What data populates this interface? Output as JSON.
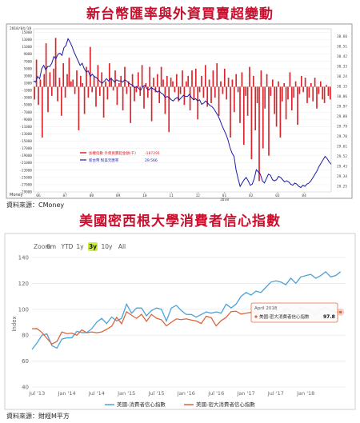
{
  "title_top": "新台幣匯率與外資買賣超變動",
  "title_bottom": "美國密西根大學消費者信心指數",
  "source_top": "資料來源：CMoney",
  "source_bottom": "資料來源：財經M平方",
  "colors": {
    "title": "#c8102e",
    "bars": "#d9262c",
    "twd_line": "#1a1aa8",
    "us_line": "#4aa3d8",
    "eu_line": "#e0643a",
    "zoom_active": "#c9ef3a"
  },
  "chart_data": [
    {
      "type": "bar",
      "chart": "foreign-net-buy-vs-twd",
      "date_label": "2018/04/18",
      "x_tick_labels": [
        "06",
        "07",
        "08",
        "09",
        "10",
        "11",
        "12",
        "01",
        "02",
        "03",
        "04"
      ],
      "x_sub_label": "2018",
      "y_left_ticks": [
        15000,
        13000,
        11000,
        9000,
        7000,
        5000,
        3000,
        1000,
        -1000,
        -3000,
        -5000,
        -7000,
        -9000,
        -11000,
        -13000,
        -15000,
        -17000,
        -19000,
        -21000,
        -23000,
        -25000,
        -27000,
        -29000
      ],
      "y_left_range": [
        -29000,
        16000
      ],
      "y_right_ticks": [
        "30.60",
        "30.51",
        "30.42",
        "30.33",
        "30.24",
        "30.15",
        "30.06",
        "29.97",
        "29.88",
        "29.79",
        "29.70",
        "29.61",
        "29.52",
        "29.43",
        "29.34",
        "29.25"
      ],
      "y_right_range": [
        29.2,
        30.67
      ],
      "legend": [
        {
          "label": "加權指數 外資買賣超金額(千)",
          "value": "-187291"
        },
        {
          "label": "新台幣 對美元匯率",
          "value": "29.566"
        }
      ],
      "bottom_label": "Money",
      "series": [
        {
          "name": "加權指數 外資買賣超金額(千)",
          "values": [
            -3500,
            7500,
            -5000,
            2000,
            -14000,
            3500,
            12000,
            -7000,
            4000,
            -2500,
            5000,
            13500,
            -4000,
            2500,
            -8000,
            6500,
            -3000,
            3500,
            8000,
            1500,
            2000,
            -2000,
            4500,
            -12000,
            3000,
            1000,
            -7500,
            5500,
            -3000,
            11000,
            -1500,
            3000,
            -5500,
            6000,
            -2500,
            4000,
            -8500,
            1500,
            -3500,
            6500,
            2500,
            -1000,
            4500,
            -5000,
            1000,
            3000,
            -6500,
            5500,
            -2000,
            1500,
            -10000,
            3500,
            -4000,
            -1500,
            4000,
            -2500,
            6000,
            -6000,
            1000,
            -3000,
            5500,
            -9500,
            2500,
            -1500,
            3500,
            -4500,
            5500,
            2000,
            -7500,
            3000,
            -12500,
            2500,
            1500,
            -1500,
            3500,
            -4000,
            -2000,
            4500,
            -5000,
            1500,
            3000,
            -6500,
            4500,
            -3500,
            5000,
            -9000,
            -1500,
            3000,
            -3000,
            6000,
            -5500,
            2000,
            -4500,
            4500,
            -3000,
            6500,
            -8000,
            1500,
            -2000,
            5000,
            -3500,
            2500,
            -14000,
            2000,
            -7000,
            3500,
            -1500,
            -10000,
            4000,
            -16000,
            -2500,
            -8000,
            5500,
            -20000,
            3000,
            -12000,
            -4500,
            -26000,
            4500,
            -17000,
            -6000,
            3500,
            -19000,
            -2500,
            2000,
            -7500,
            -11000,
            1500,
            -14000,
            -4000,
            1000,
            -9000,
            -3500,
            4000,
            -6500,
            -3000,
            1500,
            -10500,
            -2000,
            3000,
            -1500,
            2500,
            -4500,
            -3000,
            1000,
            -4000,
            2500,
            -6000,
            -2000,
            1500,
            -3500,
            -4500,
            500,
            -2500,
            -3500
          ]
        },
        {
          "name": "新台幣 對美元匯率",
          "values": [
            30.2,
            30.19,
            30.24,
            30.22,
            30.31,
            30.34,
            30.3,
            30.33,
            30.33,
            30.36,
            30.42,
            30.4,
            30.44,
            30.45,
            30.43,
            30.5,
            30.52,
            30.58,
            30.55,
            30.51,
            30.46,
            30.42,
            30.38,
            30.34,
            30.36,
            30.31,
            30.28,
            30.29,
            30.24,
            30.26,
            30.24,
            30.23,
            30.21,
            30.19,
            30.18,
            30.2,
            30.22,
            30.2,
            30.22,
            30.21,
            30.19,
            30.21,
            30.2,
            30.2,
            30.19,
            30.21,
            30.2,
            30.18,
            30.17,
            30.16,
            30.14,
            30.15,
            30.13,
            30.12,
            30.15,
            30.16,
            30.13,
            30.12,
            30.14,
            30.13,
            30.12,
            30.1,
            30.11,
            30.09,
            30.08,
            30.05,
            30.06,
            30.05,
            30.03,
            30.02,
            30.04,
            30.05,
            30.03,
            30.05,
            30.07,
            30.06,
            30.06,
            30.08,
            30.05,
            30.03,
            30.04,
            30.02,
            30.03,
            29.99,
            30.0,
            30.02,
            30.0,
            29.98,
            29.97,
            29.95,
            29.92,
            29.89,
            29.85,
            29.8,
            29.76,
            29.72,
            29.67,
            29.6,
            29.55,
            29.52,
            29.4,
            29.32,
            29.25,
            29.28,
            29.31,
            29.33,
            29.3,
            29.26,
            29.27,
            29.32,
            29.4,
            29.38,
            29.36,
            29.3,
            29.28,
            29.32,
            29.36,
            29.35,
            29.31,
            29.3,
            29.31,
            29.34,
            29.33,
            29.31,
            29.29,
            29.3,
            29.29,
            29.27,
            29.26,
            29.28,
            29.27,
            29.25,
            29.24,
            29.26,
            29.25,
            29.27,
            29.28,
            29.3,
            29.33,
            29.36,
            29.39,
            29.43,
            29.46,
            29.49,
            29.52,
            29.5,
            29.47,
            29.45
          ]
        }
      ]
    },
    {
      "type": "line",
      "chart": "michigan-consumer-sentiment",
      "zoom_label": "Zoom",
      "zoom_buttons": [
        "6m",
        "YTD",
        "1y",
        "3y",
        "10y",
        "All"
      ],
      "zoom_selected": "3y",
      "ylabel": "Index",
      "y_ticks": [
        40,
        60,
        80,
        100,
        120,
        140
      ],
      "ylim": [
        40,
        140
      ],
      "x_labels": [
        "Jul '13",
        "Jan '14",
        "Jul '14",
        "Jan '15",
        "Jul '15",
        "Jan '16",
        "Jul '16",
        "Jan '17",
        "Jul '17",
        "Jan '18"
      ],
      "x_range_months": [
        0,
        63
      ],
      "tooltip": {
        "date": "April 2018",
        "series": "美國-密大消費者信心指數",
        "value": "97.8"
      },
      "series": [
        {
          "name": "美國-消費者信心指數",
          "x_months": [
            0,
            1,
            2,
            3,
            4,
            5,
            6,
            7,
            8,
            9,
            10,
            11,
            12,
            13,
            14,
            15,
            16,
            17,
            18,
            19,
            20,
            21,
            22,
            23,
            24,
            25,
            26,
            27,
            28,
            29,
            30,
            31,
            32,
            33,
            34,
            35,
            36,
            37,
            38,
            39,
            40,
            41,
            42,
            43,
            44,
            45,
            46,
            47,
            48,
            49,
            50,
            51,
            52,
            53,
            54,
            55,
            56,
            57,
            58,
            59,
            60,
            61,
            62
          ],
          "values": [
            69,
            74,
            80,
            81,
            72,
            70,
            77,
            78,
            78,
            83,
            82,
            82,
            85,
            90,
            93,
            89,
            94,
            91,
            93,
            104,
            97,
            101,
            101,
            95,
            99,
            101,
            100,
            91,
            101,
            103,
            99,
            96,
            96,
            94,
            96,
            98,
            97,
            98,
            97,
            104,
            101,
            104,
            110,
            113,
            111,
            114,
            113,
            117,
            121,
            122,
            121,
            119,
            124,
            120,
            125,
            126,
            127,
            124,
            126,
            129,
            125,
            126,
            129
          ]
        },
        {
          "name": "美國-密大消費者信心指數",
          "x_months": [
            0,
            1,
            2,
            3,
            4,
            5,
            6,
            7,
            8,
            9,
            10,
            11,
            12,
            13,
            14,
            15,
            16,
            17,
            18,
            19,
            20,
            21,
            22,
            23,
            24,
            25,
            26,
            27,
            28,
            29,
            30,
            31,
            32,
            33,
            34,
            35,
            36,
            37,
            38,
            39,
            40,
            41,
            42,
            43,
            44,
            45,
            46,
            47,
            48,
            49,
            50,
            51,
            52,
            53,
            54,
            55,
            56,
            57,
            58,
            59,
            60,
            61,
            62
          ],
          "values": [
            85,
            85.1,
            82.1,
            77.5,
            73.2,
            75.1,
            82.5,
            81.2,
            81.6,
            80,
            84.1,
            81.9,
            82.5,
            81.9,
            82.5,
            84.6,
            86.9,
            93.8,
            88.8,
            98.1,
            95.4,
            93,
            96.1,
            90.7,
            96.1,
            93.1,
            91.9,
            87.2,
            90,
            92.6,
            92,
            92.6,
            91.7,
            91,
            89,
            94.7,
            93.5,
            87.2,
            91.2,
            93.8,
            98.2,
            98.5,
            96.3,
            97,
            97.6,
            97.1,
            95.1,
            93.4,
            96.8,
            95,
            95.1,
            100.7,
            98.5,
            95.7,
            101.4,
            99.7,
            98.8,
            95.7,
            99.7,
            101.4,
            98.8,
            97.8,
            97.8
          ]
        }
      ]
    }
  ]
}
